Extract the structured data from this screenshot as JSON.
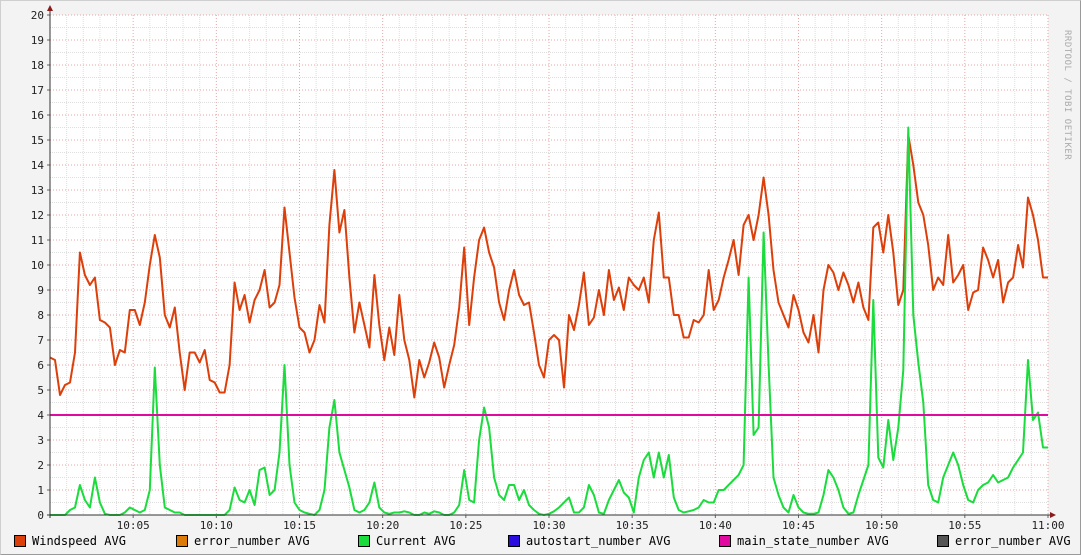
{
  "credit": "RRDTOOL / TOBI OETIKER",
  "legend": [
    {
      "label": "Windspeed AVG",
      "color": "#dd3f0a"
    },
    {
      "label": "error_number AVG",
      "color": "#dc7a0a"
    },
    {
      "label": "Current AVG",
      "color": "#1adc3c"
    },
    {
      "label": "autostart_number AVG",
      "color": "#2a0ee0"
    },
    {
      "label": "main_state_number AVG",
      "color": "#e00aa0"
    },
    {
      "label": "error_number AVG",
      "color": "#555555"
    }
  ],
  "chart_data": {
    "type": "line",
    "title": "",
    "xlabel": "",
    "ylabel": "",
    "ylim": [
      0,
      20
    ],
    "yticks": [
      "0",
      "1",
      "2",
      "3",
      "4",
      "5",
      "6",
      "7",
      "8",
      "9",
      "10",
      "11",
      "12",
      "13",
      "14",
      "15",
      "16",
      "17",
      "18",
      "19",
      "20"
    ],
    "xlim": [
      "10:00",
      "11:00"
    ],
    "xticks": [
      "10:05",
      "10:10",
      "10:15",
      "10:20",
      "10:25",
      "10:30",
      "10:35",
      "10:40",
      "10:45",
      "10:50",
      "10:55",
      "11:00"
    ],
    "grid": true,
    "legend_position": "bottom",
    "sample_interval_seconds": 18,
    "series": [
      {
        "name": "Windspeed AVG",
        "color": "#dd3f0a",
        "values": [
          6.3,
          6.2,
          4.8,
          5.2,
          5.3,
          6.5,
          10.5,
          9.6,
          9.2,
          9.5,
          7.8,
          7.7,
          7.5,
          6.0,
          6.6,
          6.5,
          8.2,
          8.2,
          7.6,
          8.5,
          10.0,
          11.2,
          10.3,
          8.0,
          7.5,
          8.3,
          6.5,
          5.0,
          6.5,
          6.5,
          6.1,
          6.6,
          5.4,
          5.3,
          4.9,
          4.9,
          6.0,
          9.3,
          8.2,
          8.8,
          7.7,
          8.6,
          9.0,
          9.8,
          8.3,
          8.5,
          9.2,
          12.3,
          10.5,
          8.7,
          7.5,
          7.3,
          6.5,
          7.0,
          8.4,
          7.7,
          11.6,
          13.8,
          11.3,
          12.2,
          9.5,
          7.3,
          8.5,
          7.6,
          6.7,
          9.6,
          7.6,
          6.2,
          7.5,
          6.4,
          8.8,
          7.0,
          6.2,
          4.7,
          6.2,
          5.5,
          6.1,
          6.9,
          6.3,
          5.1,
          6.0,
          6.8,
          8.3,
          10.7,
          7.6,
          9.5,
          11.0,
          11.5,
          10.5,
          9.9,
          8.5,
          7.8,
          9.0,
          9.8,
          8.8,
          8.4,
          8.5,
          7.3,
          6.0,
          5.5,
          7.0,
          7.2,
          7.0,
          5.1,
          8.0,
          7.4,
          8.4,
          9.7,
          7.6,
          7.9,
          9.0,
          8.0,
          9.8,
          8.6,
          9.1,
          8.2,
          9.5,
          9.2,
          9.0,
          9.5,
          8.5,
          11.0,
          12.1,
          9.5,
          9.5,
          8.0,
          8.0,
          7.1,
          7.1,
          7.8,
          7.7,
          8.0,
          9.8,
          8.2,
          8.6,
          9.5,
          10.2,
          11.0,
          9.6,
          11.6,
          12.0,
          11.0,
          12.0,
          13.5,
          12.0,
          9.8,
          8.5,
          8.0,
          7.5,
          8.8,
          8.2,
          7.3,
          6.9,
          8.0,
          6.5,
          9.0,
          10.0,
          9.7,
          9.0,
          9.7,
          9.2,
          8.5,
          9.3,
          8.3,
          7.8,
          11.5,
          11.7,
          10.5,
          12.0,
          10.5,
          8.4,
          9.0,
          15.2,
          14.0,
          12.5,
          12.0,
          10.8,
          9.0,
          9.5,
          9.2,
          11.2,
          9.3,
          9.6,
          10.0,
          8.2,
          8.9,
          9.0,
          10.7,
          10.2,
          9.5,
          10.2,
          8.5,
          9.3,
          9.5,
          10.8,
          9.9,
          12.7,
          12.0,
          11.0,
          9.5,
          9.5
        ]
      },
      {
        "name": "Current AVG",
        "color": "#1adc3c",
        "values": [
          0,
          0,
          0,
          0,
          0.2,
          0.3,
          1.2,
          0.6,
          0.3,
          1.5,
          0.5,
          0.05,
          0,
          0,
          0,
          0.1,
          0.3,
          0.2,
          0.1,
          0.2,
          1.0,
          5.9,
          2.0,
          0.3,
          0.2,
          0.1,
          0.1,
          0,
          0,
          0,
          0,
          0,
          0,
          0,
          0,
          0,
          0.2,
          1.1,
          0.6,
          0.5,
          1.0,
          0.4,
          1.8,
          1.9,
          0.8,
          1.0,
          2.5,
          6.0,
          2.0,
          0.5,
          0.2,
          0.1,
          0.05,
          0,
          0.2,
          1.0,
          3.5,
          4.6,
          2.5,
          1.8,
          1.1,
          0.2,
          0.1,
          0.2,
          0.5,
          1.3,
          0.3,
          0.1,
          0.05,
          0.1,
          0.1,
          0.15,
          0.1,
          0,
          0,
          0.1,
          0.05,
          0.15,
          0.1,
          0,
          0,
          0.1,
          0.4,
          1.8,
          0.6,
          0.5,
          3.0,
          4.3,
          3.5,
          1.5,
          0.8,
          0.6,
          1.2,
          1.2,
          0.6,
          1.0,
          0.4,
          0.2,
          0.05,
          0,
          0.05,
          0.15,
          0.3,
          0.5,
          0.7,
          0.1,
          0.1,
          0.3,
          1.2,
          0.8,
          0.1,
          0.05,
          0.6,
          1.0,
          1.4,
          0.9,
          0.7,
          0.1,
          1.5,
          2.2,
          2.5,
          1.5,
          2.5,
          1.5,
          2.4,
          0.7,
          0.2,
          0.1,
          0.15,
          0.2,
          0.3,
          0.6,
          0.5,
          0.5,
          1.0,
          1.0,
          1.2,
          1.4,
          1.6,
          2.0,
          9.5,
          3.2,
          3.5,
          11.3,
          6.0,
          1.5,
          0.8,
          0.3,
          0.1,
          0.8,
          0.3,
          0.1,
          0.05,
          0.05,
          0.1,
          0.8,
          1.8,
          1.5,
          1.0,
          0.3,
          0.05,
          0.1,
          0.8,
          1.4,
          2.0,
          8.6,
          2.3,
          1.9,
          3.8,
          2.2,
          3.5,
          5.8,
          15.5,
          8.0,
          6.1,
          4.5,
          1.2,
          0.6,
          0.5,
          1.5,
          2.0,
          2.5,
          2.0,
          1.2,
          0.6,
          0.5,
          1.0,
          1.2,
          1.3,
          1.6,
          1.3,
          1.4,
          1.5,
          1.9,
          2.2,
          2.5,
          6.2,
          3.8,
          4.1,
          2.7,
          2.7
        ]
      },
      {
        "name": "main_state_number AVG",
        "color": "#e00aa0",
        "constant": 4
      }
    ]
  }
}
